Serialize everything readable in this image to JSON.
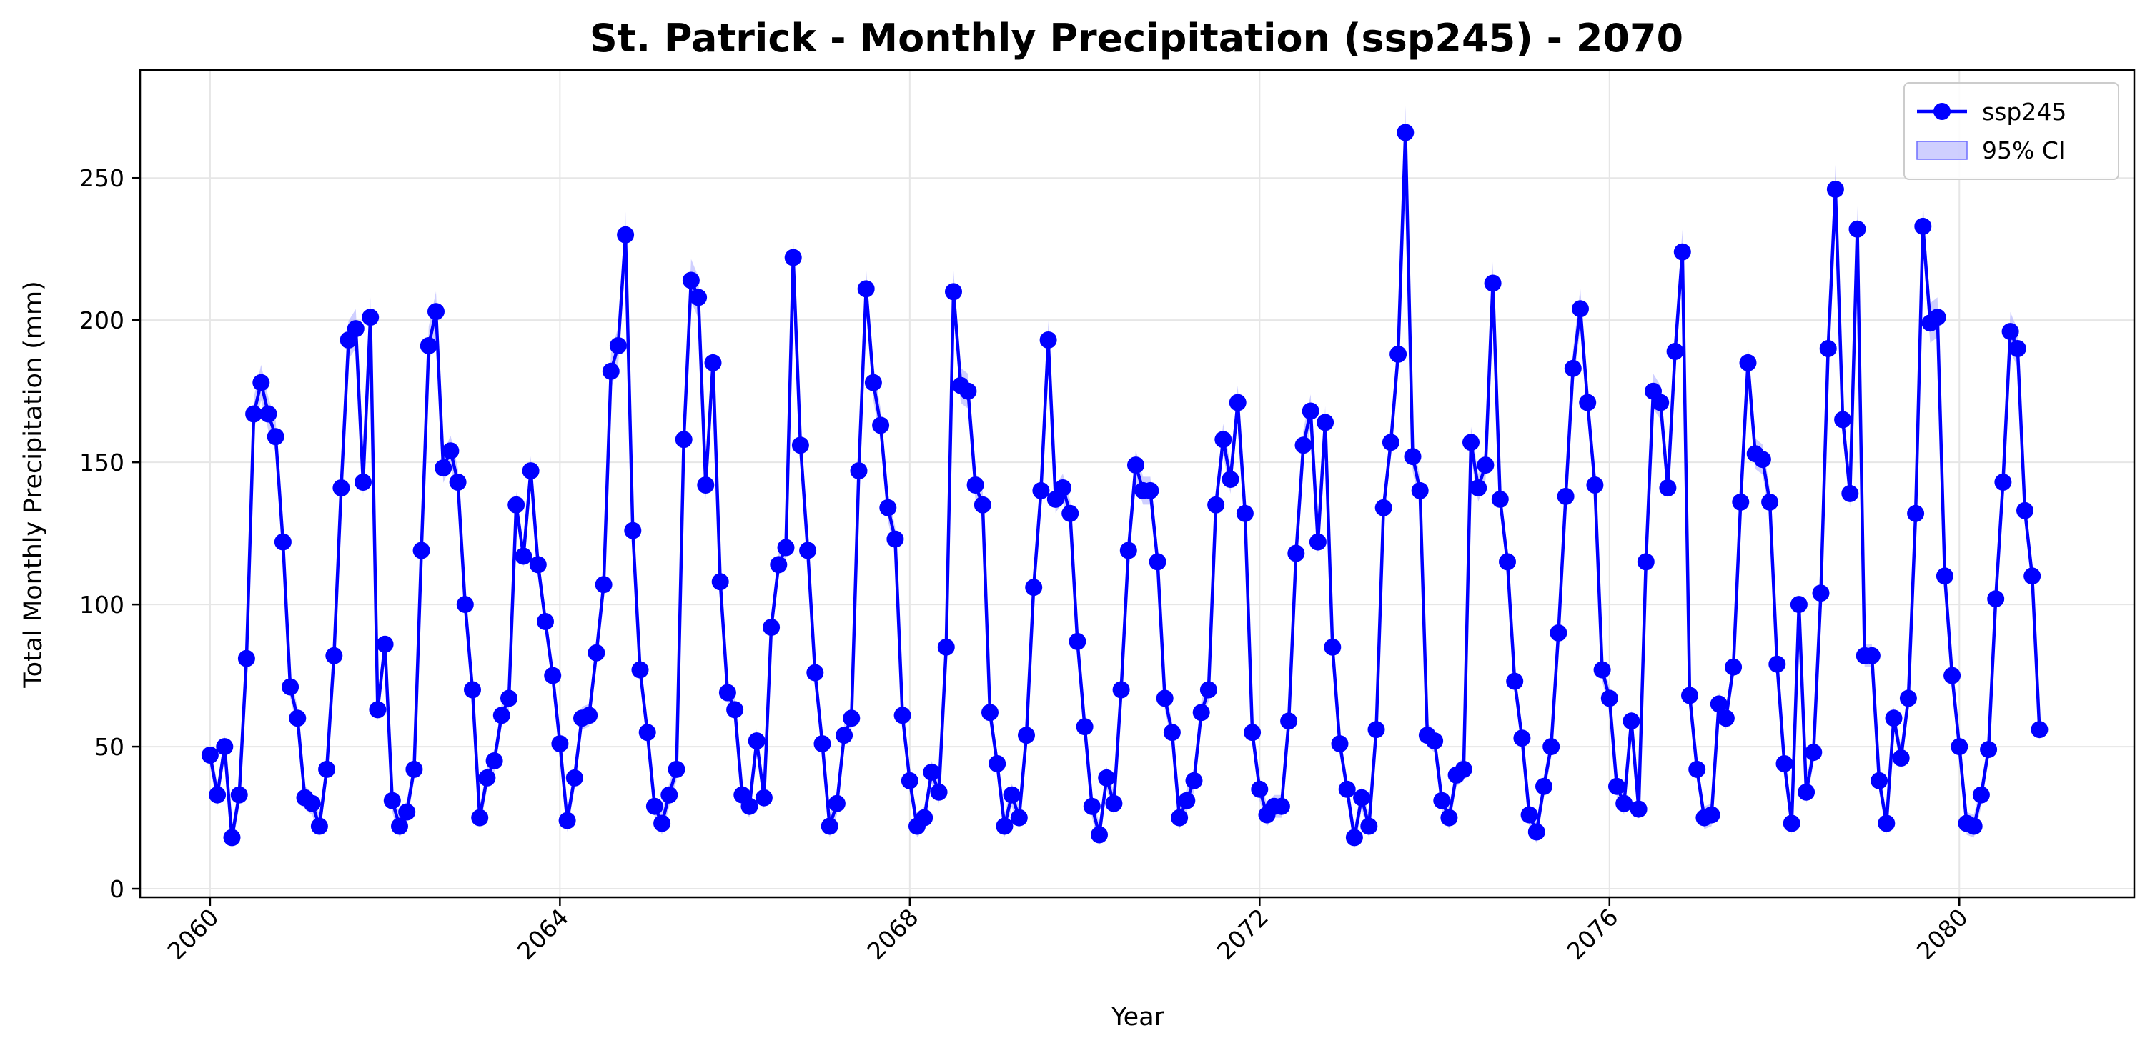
{
  "chart_data": {
    "type": "line",
    "title": "St. Patrick - Monthly Precipitation (ssp245) - 2070",
    "xlabel": "Year",
    "ylabel": "Total Monthly Precipitation (mm)",
    "xlim": [
      2059.2,
      2082.0
    ],
    "ylim": [
      -3,
      288
    ],
    "xticks": [
      2060,
      2064,
      2068,
      2072,
      2076,
      2080
    ],
    "yticks": [
      0,
      50,
      100,
      150,
      200,
      250
    ],
    "grid": true,
    "legend_position": "upper-right",
    "legend": [
      {
        "label": "ssp245",
        "kind": "line-marker"
      },
      {
        "label": "95% CI",
        "kind": "band"
      }
    ],
    "colors": {
      "line": "#0000ff",
      "band": "#9f9fff",
      "grid": "#e6e6e6"
    },
    "start_year": 2060,
    "series": [
      {
        "name": "ssp245",
        "values": [
          47,
          33,
          50,
          18,
          33,
          81,
          167,
          178,
          167,
          159,
          122,
          71,
          60,
          32,
          30,
          22,
          42,
          82,
          141,
          193,
          197,
          143,
          201,
          63,
          86,
          31,
          22,
          27,
          42,
          119,
          191,
          203,
          148,
          154,
          143,
          100,
          70,
          25,
          39,
          45,
          61,
          67,
          135,
          117,
          147,
          114,
          94,
          75,
          51,
          24,
          39,
          60,
          61,
          83,
          107,
          182,
          191,
          230,
          126,
          77,
          55,
          29,
          23,
          33,
          42,
          158,
          214,
          208,
          142,
          185,
          108,
          69,
          63,
          33,
          29,
          52,
          32,
          92,
          114,
          120,
          222,
          156,
          119,
          76,
          51,
          22,
          30,
          54,
          60,
          147,
          211,
          178,
          163,
          134,
          123,
          61,
          38,
          22,
          25,
          41,
          34,
          85,
          210,
          177,
          175,
          142,
          135,
          62,
          44,
          22,
          33,
          25,
          54,
          106,
          140,
          193,
          137,
          141,
          132,
          87,
          57,
          29,
          19,
          39,
          30,
          70,
          119,
          149,
          140,
          140,
          115,
          67,
          55,
          25,
          31,
          38,
          62,
          70,
          135,
          158,
          144,
          171,
          132,
          55,
          35,
          26,
          29,
          29,
          59,
          118,
          156,
          168,
          122,
          164,
          85,
          51,
          35,
          18,
          32,
          22,
          56,
          134,
          157,
          188,
          266,
          152,
          140,
          54,
          52,
          31,
          25,
          40,
          42,
          157,
          141,
          149,
          213,
          137,
          115,
          73,
          53,
          26,
          20,
          36,
          50,
          90,
          138,
          183,
          204,
          171,
          142,
          77,
          67,
          36,
          30,
          59,
          28,
          115,
          175,
          171,
          141,
          189,
          224,
          68,
          42,
          25,
          26,
          65,
          60,
          78,
          136,
          185,
          153,
          151,
          136,
          79,
          44,
          23,
          100,
          34,
          48,
          104,
          190,
          246,
          165,
          139,
          232,
          82,
          82,
          38,
          23,
          60,
          46,
          67,
          132,
          233,
          199,
          201,
          110,
          75,
          50,
          23,
          22,
          33,
          49,
          102,
          143,
          196,
          190,
          133,
          110,
          56
        ]
      }
    ]
  }
}
